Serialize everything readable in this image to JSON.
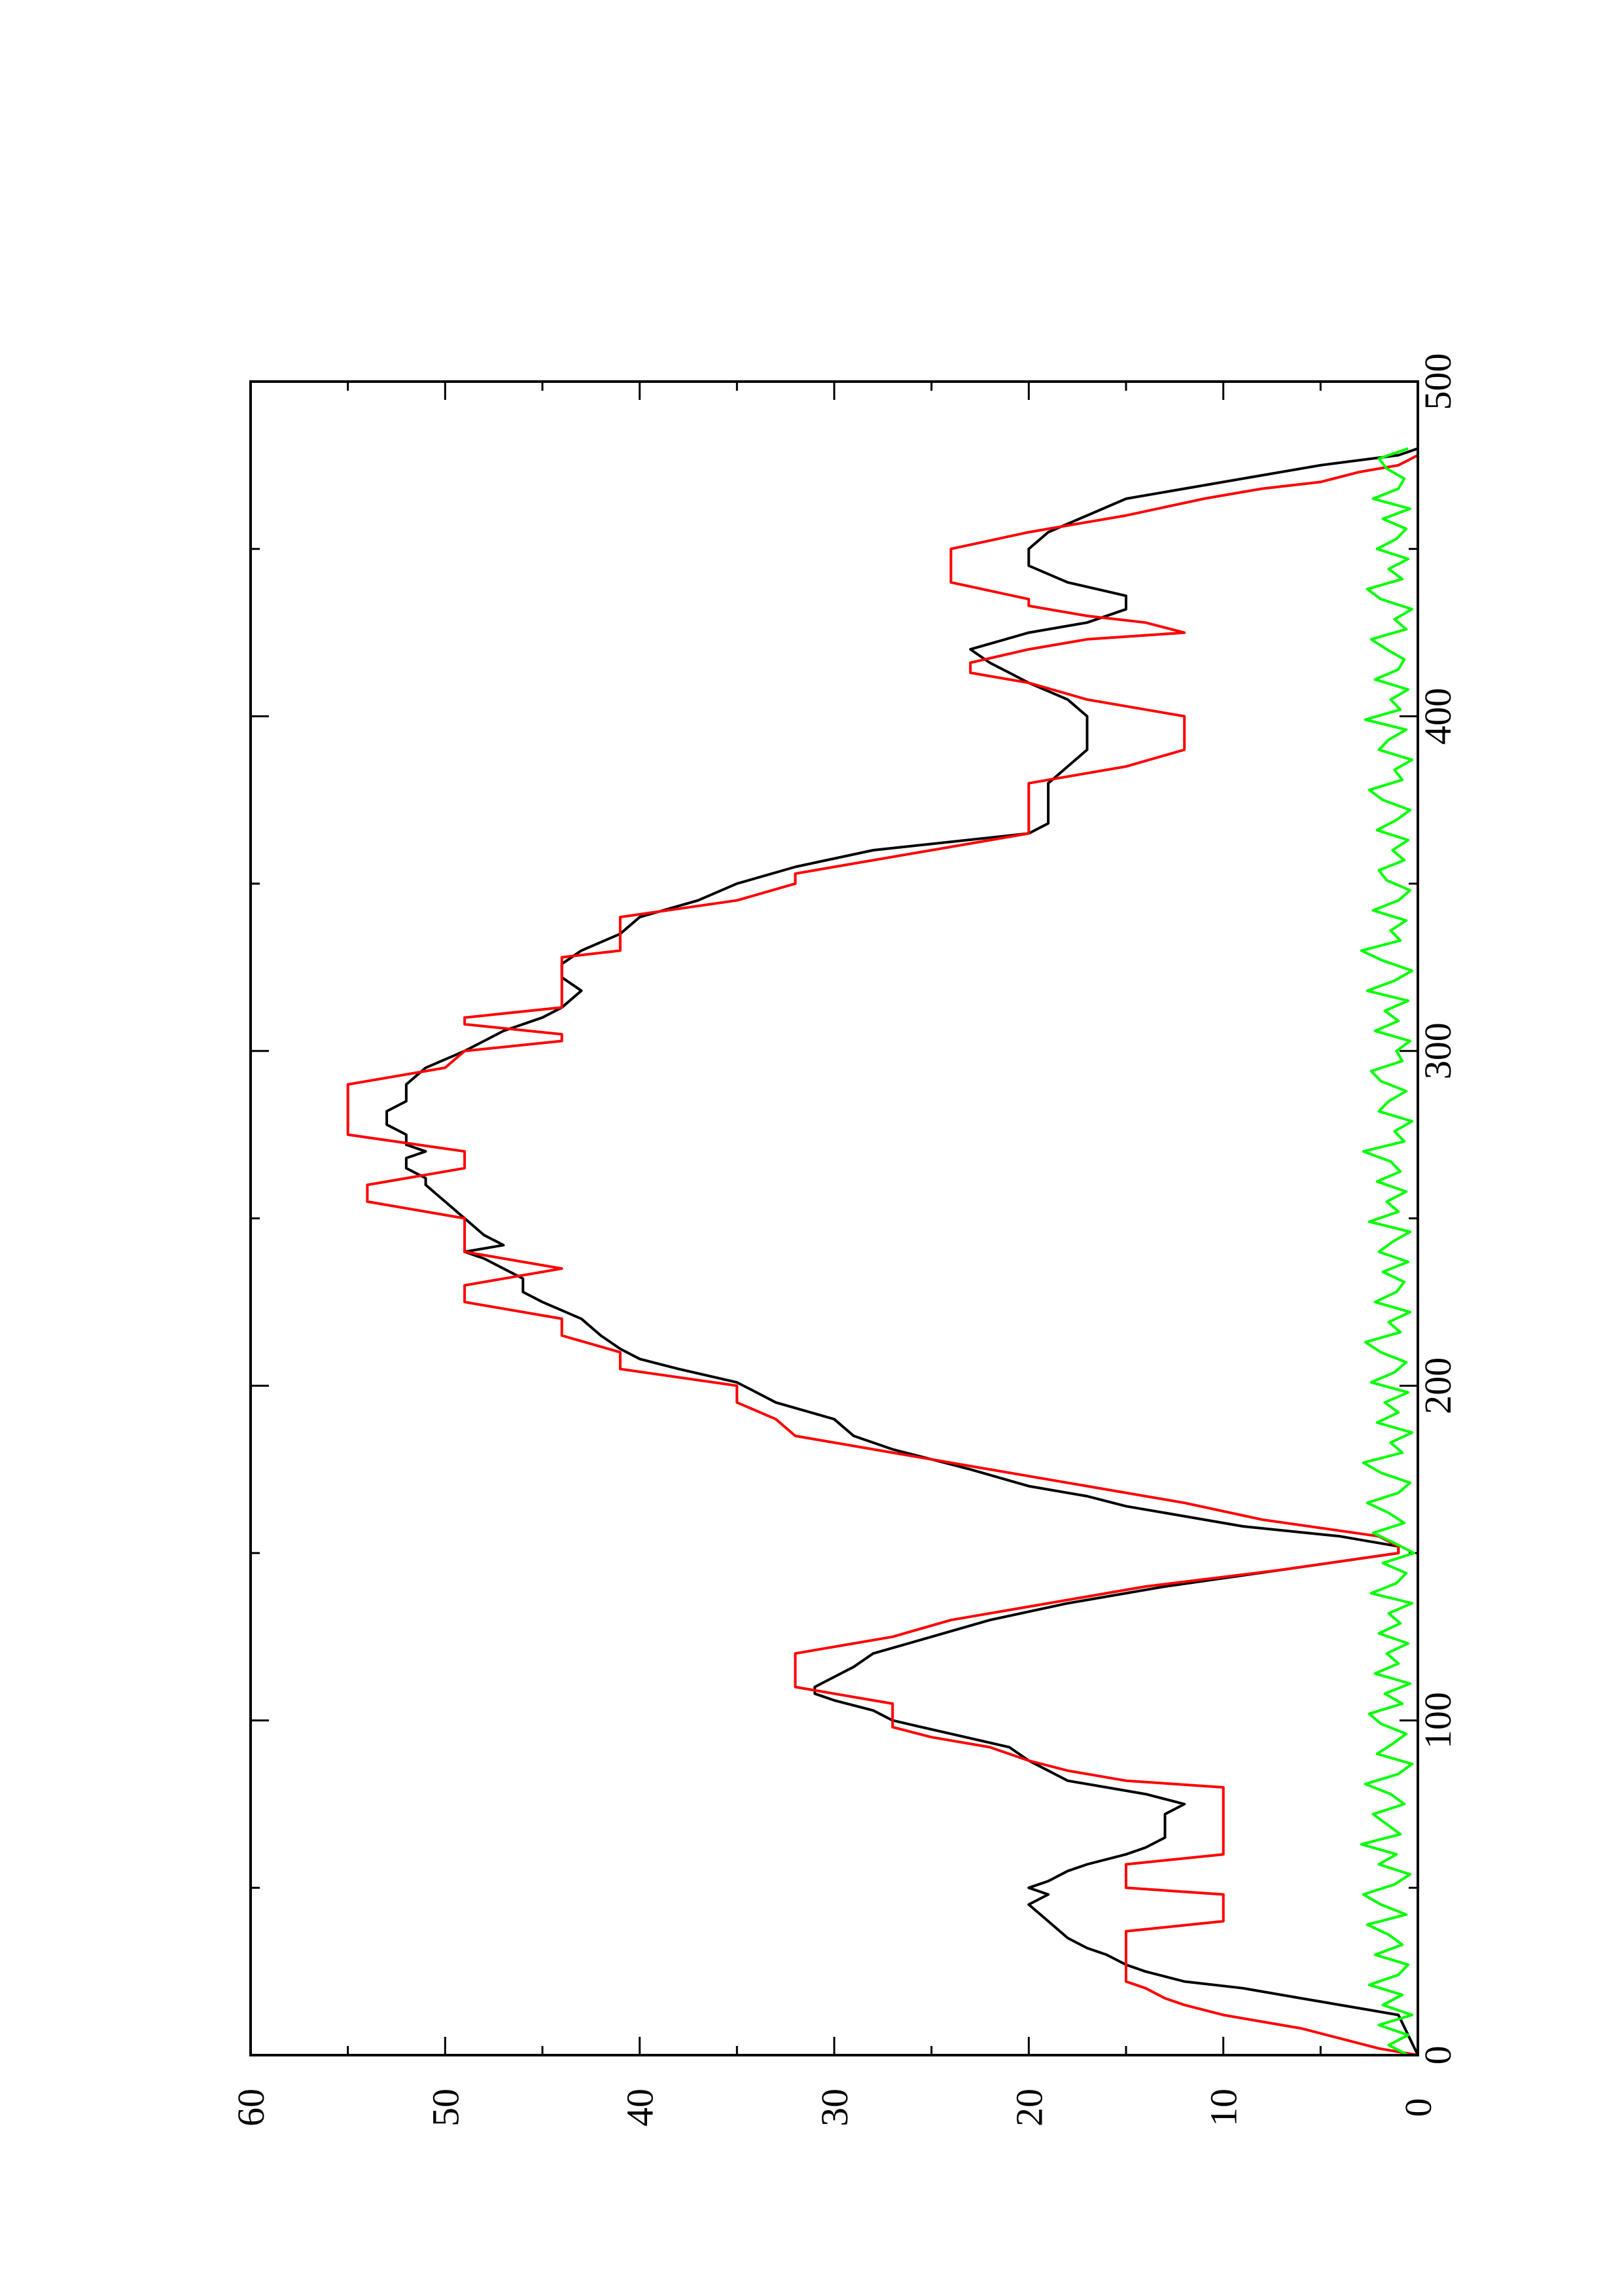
{
  "chart_data": {
    "type": "line",
    "orientation": "rotated-90-ccw",
    "title": "",
    "xlabel": "",
    "ylabel": "",
    "xlim": [
      0,
      500
    ],
    "ylim": [
      0,
      60
    ],
    "x_ticks": [
      0,
      100,
      200,
      300,
      400,
      500
    ],
    "x_tick_labels": [
      "0",
      "100",
      "200",
      "300",
      "400",
      "500"
    ],
    "y_ticks": [
      0,
      10,
      20,
      30,
      40,
      50,
      60
    ],
    "y_tick_labels": [
      "0",
      "10",
      "20",
      "30",
      "40",
      "50",
      "60"
    ],
    "x_minor_ticks": [
      50,
      150,
      250,
      350,
      450
    ],
    "y_minor_ticks": [
      5,
      15,
      25,
      35,
      45,
      55
    ],
    "grid": false,
    "legend": "none",
    "series": [
      {
        "color": "#000000",
        "x": [
          0,
          12,
          14,
          17,
          20,
          22,
          25,
          27,
          30,
          32,
          35,
          40,
          45,
          48,
          50,
          52,
          55,
          57,
          60,
          62,
          65,
          68,
          72,
          75,
          78,
          80,
          82,
          85,
          88,
          92,
          96,
          100,
          103,
          106,
          108,
          110,
          113,
          116,
          120,
          125,
          130,
          135,
          140,
          145,
          150,
          152,
          155,
          158,
          161,
          164,
          167,
          170,
          175,
          178,
          181,
          185,
          190,
          195,
          198,
          201,
          205,
          208,
          211,
          215,
          220,
          225,
          228,
          232,
          235,
          238,
          240,
          242,
          245,
          250,
          255,
          260,
          262,
          265,
          268,
          270,
          272,
          275,
          278,
          282,
          285,
          290,
          295,
          300,
          303,
          306,
          310,
          313,
          318,
          322,
          326,
          330,
          335,
          340,
          345,
          350,
          355,
          360,
          365,
          368,
          372,
          376,
          380,
          385,
          390,
          395,
          400,
          405,
          410,
          413,
          416,
          420,
          425,
          428,
          432,
          436,
          440,
          445,
          450,
          455,
          460,
          465,
          470,
          475,
          478,
          480
        ],
        "y": [
          0,
          1,
          3,
          6,
          9,
          12,
          14,
          15,
          16,
          17,
          18,
          19,
          20,
          19,
          20,
          19,
          18,
          17,
          15,
          14,
          13,
          13,
          13,
          12,
          14,
          16,
          18,
          19,
          20,
          21,
          24,
          27,
          28,
          30,
          31,
          31,
          30,
          29,
          28,
          25,
          22,
          18,
          13,
          7,
          1,
          1,
          4,
          9,
          12,
          15,
          17,
          20,
          23,
          25,
          27,
          29,
          30,
          33,
          34,
          35,
          38,
          40,
          41,
          42,
          43,
          45,
          46,
          46,
          47,
          48,
          49,
          47,
          48,
          49,
          50,
          51,
          51,
          52,
          52,
          51,
          52,
          52,
          53,
          53,
          52,
          52,
          51,
          49,
          48,
          47,
          45,
          44,
          43,
          44,
          44,
          43,
          41,
          40,
          37,
          35,
          32,
          28,
          20,
          19,
          19,
          19,
          19,
          18,
          17,
          17,
          17,
          18,
          20,
          21,
          22,
          23,
          20,
          17,
          15,
          15,
          18,
          20,
          20,
          19,
          17,
          15,
          10,
          5,
          1,
          0
        ]
      },
      {
        "color": "#ff0000",
        "x": [
          0,
          2,
          5,
          8,
          10,
          12,
          15,
          17,
          20,
          22,
          25,
          28,
          30,
          35,
          37,
          40,
          45,
          48,
          50,
          55,
          57,
          60,
          62,
          65,
          70,
          75,
          80,
          82,
          85,
          88,
          92,
          95,
          98,
          100,
          105,
          110,
          115,
          120,
          125,
          130,
          135,
          140,
          145,
          150,
          152,
          155,
          160,
          165,
          170,
          175,
          180,
          185,
          190,
          195,
          200,
          205,
          210,
          215,
          220,
          225,
          230,
          235,
          240,
          245,
          250,
          255,
          260,
          265,
          270,
          275,
          280,
          285,
          290,
          295,
          300,
          303,
          305,
          308,
          310,
          313,
          315,
          318,
          320,
          325,
          328,
          330,
          333,
          335,
          340,
          345,
          350,
          353,
          355,
          360,
          365,
          370,
          375,
          380,
          385,
          390,
          395,
          400,
          405,
          410,
          413,
          416,
          420,
          423,
          425,
          428,
          430,
          433,
          435,
          440,
          445,
          450,
          455,
          460,
          465,
          468,
          470,
          473,
          475,
          478,
          480
        ],
        "y": [
          0,
          2,
          4,
          6,
          8,
          10,
          12,
          13,
          14,
          15,
          15,
          15,
          15,
          15,
          15,
          10,
          10,
          10,
          15,
          15,
          15,
          10,
          10,
          10,
          10,
          10,
          10,
          15,
          18,
          20,
          22,
          25,
          27,
          27,
          27,
          32,
          32,
          32,
          27,
          24,
          19,
          14,
          7,
          1,
          1,
          2,
          8,
          12,
          17,
          22,
          27,
          32,
          33,
          35,
          35,
          41,
          41,
          44,
          44,
          49,
          49,
          44,
          49,
          49,
          49,
          54,
          54,
          49,
          49,
          55,
          55,
          55,
          55,
          50,
          49,
          44,
          44,
          49,
          49,
          44,
          44,
          44,
          44,
          44,
          44,
          41,
          41,
          41,
          41,
          35,
          32,
          32,
          30,
          25,
          20,
          20,
          20,
          20,
          15,
          12,
          12,
          12,
          17,
          20,
          23,
          23,
          20,
          17,
          12,
          14,
          17,
          20,
          20,
          24,
          24,
          24,
          20,
          15,
          11,
          8,
          5,
          3,
          1,
          0,
          0
        ]
      },
      {
        "color": "#00ff00",
        "x": [
          0,
          3,
          6,
          9,
          12,
          15,
          18,
          21,
          24,
          27,
          30,
          33,
          36,
          39,
          42,
          45,
          48,
          51,
          54,
          57,
          60,
          63,
          66,
          69,
          72,
          75,
          78,
          81,
          84,
          87,
          90,
          93,
          96,
          99,
          102,
          105,
          108,
          111,
          114,
          117,
          120,
          123,
          126,
          129,
          132,
          135,
          138,
          141,
          144,
          147,
          150,
          153,
          156,
          159,
          162,
          165,
          168,
          171,
          174,
          177,
          180,
          183,
          186,
          189,
          192,
          195,
          198,
          201,
          204,
          207,
          210,
          213,
          216,
          219,
          222,
          225,
          228,
          231,
          234,
          237,
          240,
          243,
          246,
          249,
          252,
          255,
          258,
          261,
          264,
          267,
          270,
          273,
          276,
          279,
          282,
          285,
          288,
          291,
          294,
          297,
          300,
          303,
          306,
          309,
          312,
          315,
          318,
          321,
          324,
          327,
          330,
          333,
          336,
          339,
          342,
          345,
          348,
          351,
          354,
          357,
          360,
          363,
          366,
          369,
          372,
          375,
          378,
          381,
          384,
          387,
          390,
          393,
          396,
          399,
          402,
          405,
          408,
          411,
          414,
          417,
          420,
          423,
          426,
          429,
          432,
          435,
          438,
          441,
          444,
          447,
          450,
          453,
          456,
          459,
          462,
          465,
          468,
          471,
          474,
          477,
          480
        ],
        "y": [
          0.5,
          1.5,
          0.5,
          2.0,
          0.3,
          1.8,
          0.8,
          2.5,
          1.0,
          0.5,
          2.2,
          0.8,
          1.5,
          2.6,
          0.6,
          1.9,
          2.8,
          1.2,
          0.4,
          2.0,
          1.1,
          2.9,
          0.9,
          1.6,
          2.3,
          0.7,
          1.4,
          2.7,
          1.0,
          0.3,
          2.1,
          1.3,
          0.6,
          1.9,
          2.5,
          0.8,
          1.7,
          0.4,
          2.2,
          1.0,
          1.6,
          0.5,
          2.0,
          0.9,
          1.5,
          0.3,
          2.4,
          1.1,
          0.6,
          1.8,
          0.2,
          1.2,
          2.3,
          0.7,
          1.5,
          2.6,
          1.0,
          0.4,
          1.9,
          2.8,
          0.8,
          1.4,
          0.3,
          2.1,
          1.0,
          1.7,
          0.5,
          2.4,
          1.2,
          0.6,
          1.9,
          2.7,
          0.9,
          1.5,
          0.4,
          2.2,
          1.1,
          0.7,
          1.8,
          0.5,
          2.0,
          1.3,
          0.4,
          2.5,
          1.0,
          1.6,
          0.6,
          2.1,
          0.9,
          1.4,
          2.8,
          0.7,
          1.2,
          0.3,
          2.0,
          1.5,
          0.6,
          1.9,
          2.4,
          0.8,
          1.1,
          0.4,
          2.2,
          1.0,
          1.7,
          0.5,
          2.6,
          1.2,
          0.3,
          1.8,
          2.9,
          0.9,
          1.4,
          0.6,
          2.3,
          1.0,
          0.4,
          1.6,
          2.0,
          0.7,
          1.3,
          0.5,
          2.1,
          1.1,
          0.4,
          1.8,
          2.5,
          0.8,
          1.2,
          0.3,
          2.0,
          1.5,
          0.6,
          2.7,
          0.9,
          1.4,
          0.5,
          2.2,
          1.0,
          0.7,
          1.6,
          2.4,
          0.6,
          1.2,
          0.3,
          1.9,
          2.6,
          0.8,
          1.5,
          0.5,
          2.1,
          1.1,
          0.6,
          1.8,
          0.4,
          2.3,
          1.0,
          0.7,
          1.6,
          2.0,
          0.5
        ]
      }
    ]
  }
}
